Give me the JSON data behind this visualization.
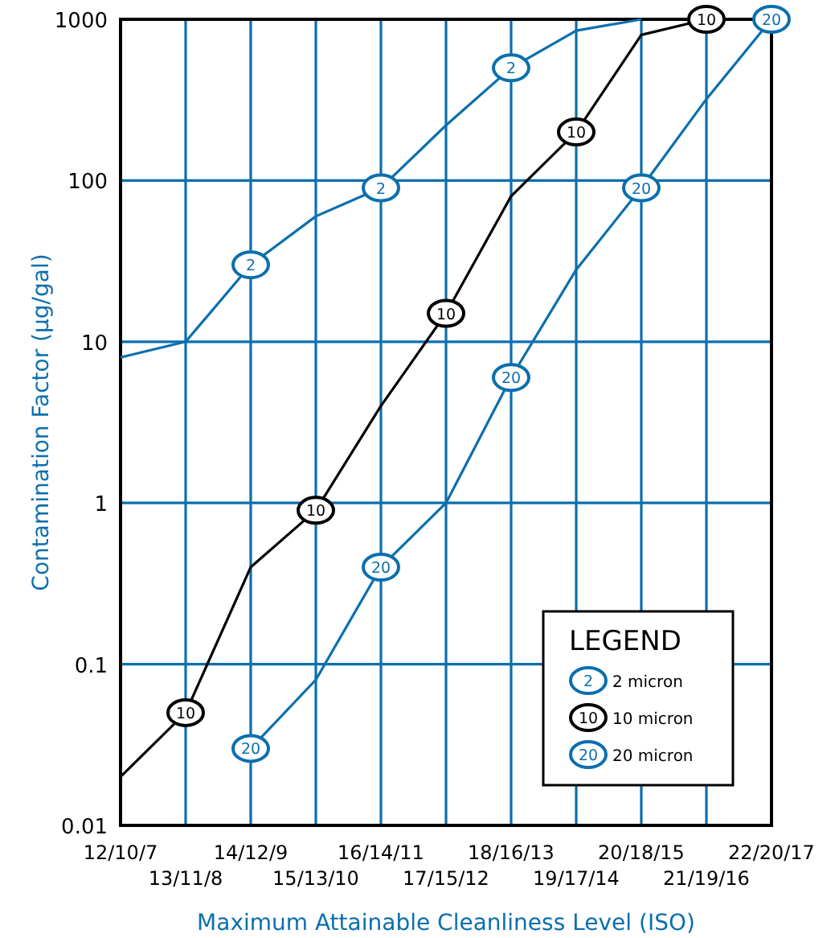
{
  "chart_data": {
    "type": "line",
    "xlabel": "Maximum Attainable Cleanliness Level (ISO)",
    "ylabel": "Contamination Factor (µg/gal)",
    "legend_title": "LEGEND",
    "legend": "bottom right",
    "grid": true,
    "log": true,
    "ylim": [
      0.01,
      1000
    ],
    "yticks": [
      0.01,
      0.1,
      1,
      10,
      100,
      1000
    ],
    "categories": [
      "12/10/7",
      "13/11/8",
      "14/12/9",
      "15/13/10",
      "16/14/11",
      "17/15/12",
      "18/16/13",
      "19/17/14",
      "20/18/15",
      "21/19/16",
      "22/20/17"
    ],
    "series": [
      {
        "color": "#0b6fae",
        "values": [
          8,
          10,
          30,
          60,
          90,
          220,
          500,
          850,
          1000,
          null,
          null
        ]
      },
      {
        "color": "#000000",
        "values": [
          0.02,
          0.05,
          0.4,
          0.9,
          4,
          15,
          80,
          200,
          800,
          1000,
          null
        ]
      },
      {
        "color": "#0b6fae",
        "values": [
          null,
          null,
          0.03,
          0.08,
          0.4,
          1,
          6,
          28,
          90,
          320,
          1000
        ]
      },
      {
        "type": "scatter",
        "name": "2 micron",
        "color": "#0b6fae",
        "marker": "circle",
        "x": [
          "14/12/9",
          "16/14/11",
          "18/16/13"
        ],
        "values": [
          30,
          90,
          500
        ]
      },
      {
        "type": "scatter",
        "name": "10 micron",
        "color": "#000000",
        "marker": "circle",
        "x": [
          "13/11/8",
          "15/13/10",
          "17/15/12",
          "19/17/14",
          "21/19/16"
        ],
        "values": [
          0.05,
          0.9,
          15,
          200,
          1000
        ]
      },
      {
        "type": "scatter",
        "name": "20 micron",
        "color": "#0b6fae",
        "marker": "circle",
        "x": [
          "14/12/9",
          "16/14/11",
          "18/16/13",
          "20/18/15",
          "22/20/17"
        ],
        "values": [
          0.03,
          0.4,
          6,
          90,
          1000
        ]
      }
    ],
    "annotations": [
      {
        "text": "2",
        "x": "14/12/9",
        "y": 30
      },
      {
        "text": "2",
        "x": "16/14/11",
        "y": 90
      },
      {
        "text": "2",
        "x": "18/16/13",
        "y": 500
      },
      {
        "text": "10",
        "x": "13/11/8",
        "y": 0.05
      },
      {
        "text": "10",
        "x": "15/13/10",
        "y": 0.9
      },
      {
        "text": "10",
        "x": "17/15/12",
        "y": 15
      },
      {
        "text": "10",
        "x": "19/17/14",
        "y": 200
      },
      {
        "text": "10",
        "x": "21/19/16",
        "y": 1000
      },
      {
        "text": "20",
        "x": "14/12/9",
        "y": 0.03
      },
      {
        "text": "20",
        "x": "16/14/11",
        "y": 0.4
      },
      {
        "text": "20",
        "x": "18/16/13",
        "y": 6
      },
      {
        "text": "20",
        "x": "20/18/15",
        "y": 90
      },
      {
        "text": "20",
        "x": "22/20/17",
        "y": 1000
      }
    ]
  }
}
